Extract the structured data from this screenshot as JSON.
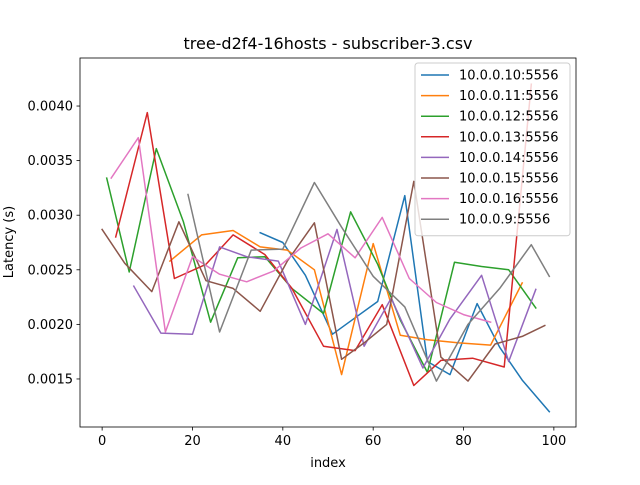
{
  "chart_data": {
    "type": "line",
    "title": "tree-d2f4-16hosts - subscriber-3.csv",
    "xlabel": "index",
    "ylabel": "Latency (s)",
    "xlim": [
      -4.9,
      104.9
    ],
    "ylim": [
      0.00106,
      0.00444
    ],
    "xticks": [
      0,
      20,
      40,
      60,
      80,
      100
    ],
    "yticks": [
      0.0015,
      0.002,
      0.0025,
      0.003,
      0.0035,
      0.004
    ],
    "ytick_labels": [
      "0.0015",
      "0.0020",
      "0.0025",
      "0.0030",
      "0.0035",
      "0.0040"
    ],
    "grid": false,
    "legend_position": "top-right",
    "series": [
      {
        "name": "10.0.0.10:5556",
        "color": "#1f77b4",
        "x": [
          35,
          40,
          45,
          51,
          56,
          61,
          67,
          72,
          77,
          83,
          88,
          93,
          99
        ],
        "y": [
          0.00284,
          0.00275,
          0.00245,
          0.00191,
          0.00206,
          0.00221,
          0.00318,
          0.00166,
          0.00154,
          0.00219,
          0.00179,
          0.00149,
          0.0012
        ]
      },
      {
        "name": "10.0.0.11:5556",
        "color": "#ff7f0e",
        "x": [
          15,
          22,
          29,
          35,
          41,
          47,
          53,
          60,
          66,
          72,
          79,
          86,
          93
        ],
        "y": [
          0.00258,
          0.00282,
          0.00286,
          0.00271,
          0.00268,
          0.0025,
          0.00154,
          0.00274,
          0.0019,
          0.00186,
          0.00183,
          0.00181,
          0.00238
        ]
      },
      {
        "name": "10.0.0.12:5556",
        "color": "#2ca02c",
        "x": [
          1,
          6,
          12,
          18,
          24,
          30,
          36,
          42,
          49,
          55,
          61,
          66,
          72,
          78,
          84,
          90,
          96
        ],
        "y": [
          0.00334,
          0.00248,
          0.00361,
          0.00294,
          0.00202,
          0.00261,
          0.00262,
          0.00233,
          0.0021,
          0.00303,
          0.00255,
          0.00204,
          0.00156,
          0.00257,
          0.00253,
          0.0025,
          0.00215
        ]
      },
      {
        "name": "10.0.0.13:5556",
        "color": "#d62728",
        "x": [
          3,
          10,
          16,
          23,
          29,
          36,
          42,
          49,
          56,
          62,
          69,
          75,
          82,
          89,
          95
        ],
        "y": [
          0.0028,
          0.00394,
          0.00242,
          0.00255,
          0.00282,
          0.00264,
          0.00233,
          0.0018,
          0.00176,
          0.00218,
          0.00144,
          0.00167,
          0.00169,
          0.00161,
          0.0042
        ]
      },
      {
        "name": "10.0.0.14:5556",
        "color": "#9467bd",
        "x": [
          7,
          13,
          20,
          26,
          32,
          39,
          45,
          52,
          58,
          64,
          71,
          77,
          84,
          90,
          96
        ],
        "y": [
          0.00235,
          0.00192,
          0.00191,
          0.00271,
          0.00262,
          0.00258,
          0.002,
          0.00287,
          0.0018,
          0.00224,
          0.0016,
          0.00205,
          0.00245,
          0.00166,
          0.00232
        ]
      },
      {
        "name": "10.0.0.15:5556",
        "color": "#8c564b",
        "x": [
          0,
          5,
          11,
          17,
          23,
          29,
          35,
          41,
          47,
          53,
          58,
          63,
          69,
          75,
          81,
          87,
          93,
          98
        ],
        "y": [
          0.00287,
          0.00256,
          0.0023,
          0.00294,
          0.0024,
          0.00233,
          0.00212,
          0.00258,
          0.00293,
          0.00168,
          0.00183,
          0.002,
          0.00331,
          0.0017,
          0.00148,
          0.00182,
          0.00189,
          0.00199
        ]
      },
      {
        "name": "10.0.0.16:5556",
        "color": "#e377c2",
        "x": [
          2,
          8,
          14,
          20,
          26,
          32,
          38,
          44,
          50,
          56,
          62,
          68,
          74,
          80,
          86
        ],
        "y": [
          0.00334,
          0.00371,
          0.00193,
          0.00262,
          0.00246,
          0.00239,
          0.00249,
          0.0027,
          0.00283,
          0.00261,
          0.00298,
          0.00242,
          0.0022,
          0.00209,
          0.00202
        ]
      },
      {
        "name": "10.0.0.9:5556",
        "color": "#7f7f7f",
        "x": [
          19,
          26,
          33,
          40,
          47,
          53,
          60,
          67,
          74,
          81,
          88,
          95,
          99
        ],
        "y": [
          0.00319,
          0.00193,
          0.00268,
          0.00269,
          0.0033,
          0.00289,
          0.00244,
          0.00216,
          0.00148,
          0.002,
          0.00233,
          0.00273,
          0.00244
        ]
      }
    ]
  }
}
